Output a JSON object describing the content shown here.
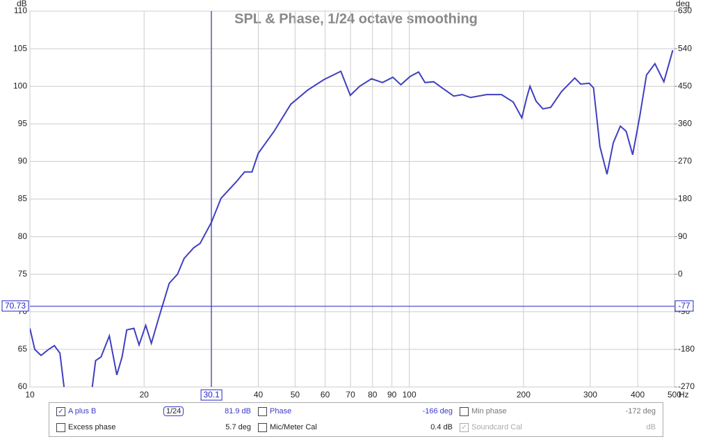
{
  "chart_data": {
    "type": "line",
    "title": "SPL & Phase, 1/24 octave smoothing",
    "x_label": "Hz",
    "y_label": "dB",
    "y2_label": "deg",
    "log_x": true,
    "grid": true,
    "x": [
      10,
      10.3,
      10.7,
      11.2,
      11.6,
      12.0,
      12.3,
      13.4,
      14.6,
      14.9,
      15.4,
      16.2,
      16.95,
      17.5,
      18.0,
      18.8,
      19.4,
      20.2,
      20.9,
      21.8,
      23.3,
      24.5,
      25.5,
      27,
      28.1,
      30.1,
      31.9,
      35,
      36.8,
      38.5,
      40,
      44,
      48.7,
      54,
      59.6,
      66,
      69.9,
      74,
      79.5,
      85,
      90.5,
      95,
      100.5,
      105.8,
      110,
      116,
      122,
      131,
      138,
      145,
      160,
      175,
      188,
      198,
      204,
      208,
      216,
      225,
      236,
      252,
      273,
      283,
      298,
      306,
      318,
      332,
      345,
      360,
      373,
      388,
      405,
      422,
      444,
      469,
      495
    ],
    "series": [
      {
        "name": "A plus B",
        "color": "#3f3fc0",
        "values": [
          67.8,
          65,
          64.2,
          65,
          65.5,
          64.5,
          60,
          null,
          60,
          63.5,
          64,
          66.8,
          61.6,
          64,
          67.6,
          67.8,
          65.6,
          68.2,
          65.8,
          69,
          73.8,
          75,
          77.1,
          78.5,
          79.1,
          81.9,
          85.1,
          87.3,
          88.6,
          88.6,
          91.1,
          94,
          97.6,
          99.5,
          100.9,
          102,
          98.8,
          100,
          101,
          100.5,
          101.2,
          100.2,
          101.3,
          101.9,
          100.5,
          100.6,
          99.8,
          98.7,
          98.9,
          98.5,
          98.9,
          98.9,
          97.9,
          95.8,
          98.5,
          100,
          98,
          97,
          97.2,
          99.3,
          101.1,
          100.3,
          100.4,
          99.8,
          92,
          88.3,
          92.5,
          94.7,
          94,
          90.9,
          96,
          101.5,
          103,
          100.6,
          104.8
        ]
      }
    ],
    "xlim": [
      10,
      500
    ],
    "xticks": [
      10,
      20,
      30,
      40,
      50,
      60,
      70,
      80,
      90,
      100,
      200,
      300,
      400,
      500
    ],
    "ylim": [
      60,
      110
    ],
    "yticks": [
      60,
      65,
      70,
      75,
      80,
      85,
      90,
      95,
      100,
      105,
      110
    ],
    "y2lim": [
      -270,
      630
    ],
    "y2ticks": [
      -270,
      -180,
      -90,
      0,
      90,
      180,
      270,
      360,
      450,
      540,
      630
    ],
    "cursor": {
      "x": 30.1,
      "y": 70.73,
      "y2": -77,
      "color": "#2323c8"
    }
  },
  "panel": {
    "rows": [
      [
        {
          "checked": true,
          "label": "A plus B",
          "smoothing": "1/24",
          "value": "81.9 dB",
          "color": "#3a3ac8"
        },
        {
          "checked": false,
          "label": "Phase",
          "value": "-166 deg",
          "color": "#3a3ac8"
        },
        {
          "checked": false,
          "label": "Min phase",
          "value": "-172 deg",
          "color": "#777"
        }
      ],
      [
        {
          "checked": false,
          "label": "Excess phase",
          "value": "5.7 deg",
          "color": "#222"
        },
        {
          "checked": false,
          "label": "Mic/Meter Cal",
          "value": "0.4 dB",
          "color": "#222"
        },
        {
          "checked": true,
          "label": "Soundcard Cal",
          "value": "dB",
          "color": "#aaa"
        }
      ]
    ]
  }
}
